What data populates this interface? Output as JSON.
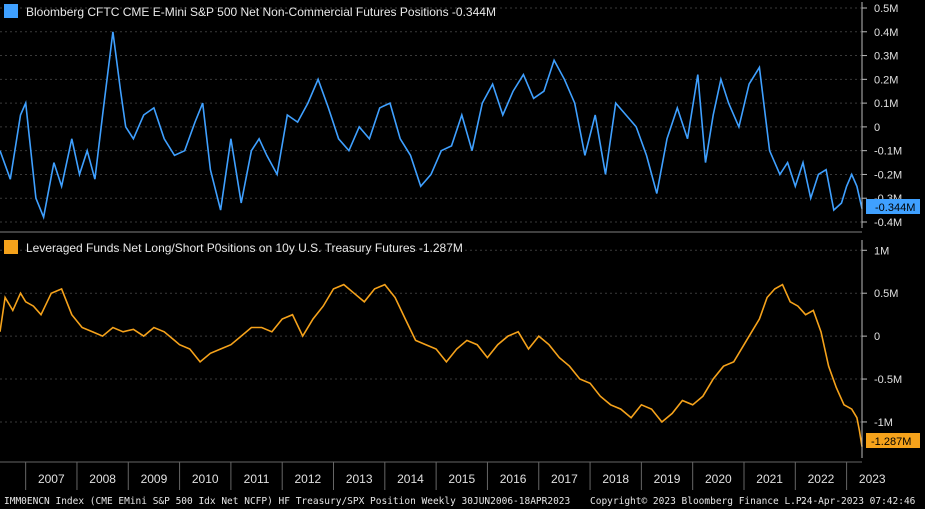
{
  "chart_data": [
    {
      "type": "line",
      "title": "Bloomberg CFTC CME E-Mini S&P 500 Net Non-Commercial Futures Positions",
      "last_value_label": "-0.344M",
      "color": "#3fa0ff",
      "ylim": [
        -0.4,
        0.5
      ],
      "y_ticks": [
        {
          "v": 0.5,
          "label": "0.5M"
        },
        {
          "v": 0.4,
          "label": "0.4M"
        },
        {
          "v": 0.3,
          "label": "0.3M"
        },
        {
          "v": 0.2,
          "label": "0.2M"
        },
        {
          "v": 0.1,
          "label": "0.1M"
        },
        {
          "v": 0,
          "label": "0"
        },
        {
          "v": -0.1,
          "label": "-0.1M"
        },
        {
          "v": -0.2,
          "label": "-0.2M"
        },
        {
          "v": -0.3,
          "label": "-0.3M"
        },
        {
          "v": -0.4,
          "label": "-0.4M"
        }
      ],
      "x": [
        2006.5,
        2006.7,
        2006.9,
        2007.0,
        2007.2,
        2007.35,
        2007.55,
        2007.7,
        2007.9,
        2008.05,
        2008.2,
        2008.35,
        2008.5,
        2008.7,
        2008.85,
        2008.95,
        2009.1,
        2009.3,
        2009.5,
        2009.7,
        2009.9,
        2010.1,
        2010.3,
        2010.45,
        2010.6,
        2010.8,
        2011.0,
        2011.2,
        2011.4,
        2011.55,
        2011.7,
        2011.9,
        2012.1,
        2012.3,
        2012.5,
        2012.7,
        2012.9,
        2013.1,
        2013.3,
        2013.5,
        2013.7,
        2013.9,
        2014.1,
        2014.3,
        2014.5,
        2014.7,
        2014.9,
        2015.1,
        2015.3,
        2015.5,
        2015.7,
        2015.9,
        2016.1,
        2016.3,
        2016.5,
        2016.7,
        2016.9,
        2017.1,
        2017.3,
        2017.5,
        2017.7,
        2017.9,
        2018.1,
        2018.3,
        2018.5,
        2018.7,
        2018.9,
        2019.1,
        2019.3,
        2019.5,
        2019.7,
        2019.9,
        2020.1,
        2020.25,
        2020.4,
        2020.55,
        2020.7,
        2020.9,
        2021.1,
        2021.3,
        2021.5,
        2021.7,
        2021.85,
        2022.0,
        2022.15,
        2022.3,
        2022.45,
        2022.6,
        2022.75,
        2022.9,
        2023.0,
        2023.1,
        2023.2,
        2023.3
      ],
      "values": [
        -0.1,
        -0.22,
        0.05,
        0.1,
        -0.3,
        -0.38,
        -0.15,
        -0.25,
        -0.05,
        -0.2,
        -0.1,
        -0.22,
        0.05,
        0.4,
        0.15,
        0.0,
        -0.05,
        0.05,
        0.08,
        -0.05,
        -0.12,
        -0.1,
        0.02,
        0.1,
        -0.18,
        -0.35,
        -0.05,
        -0.32,
        -0.1,
        -0.05,
        -0.12,
        -0.2,
        0.05,
        0.02,
        0.1,
        0.2,
        0.08,
        -0.05,
        -0.1,
        0.0,
        -0.05,
        0.08,
        0.1,
        -0.05,
        -0.12,
        -0.25,
        -0.2,
        -0.1,
        -0.08,
        0.05,
        -0.1,
        0.1,
        0.18,
        0.05,
        0.15,
        0.22,
        0.12,
        0.15,
        0.28,
        0.2,
        0.1,
        -0.12,
        0.05,
        -0.2,
        0.1,
        0.05,
        0.0,
        -0.12,
        -0.28,
        -0.05,
        0.08,
        -0.05,
        0.22,
        -0.15,
        0.05,
        0.2,
        0.1,
        0.0,
        0.18,
        0.25,
        -0.1,
        -0.2,
        -0.15,
        -0.25,
        -0.15,
        -0.3,
        -0.2,
        -0.18,
        -0.35,
        -0.32,
        -0.25,
        -0.2,
        -0.25,
        -0.344
      ]
    },
    {
      "type": "line",
      "title": "Leveraged Funds Net Long/Short P0sitions on 10y U.S. Treasury Futures",
      "last_value_label": "-1.287M",
      "color": "#f5a21b",
      "ylim": [
        -1.35,
        1.05
      ],
      "y_ticks": [
        {
          "v": 1,
          "label": "1M"
        },
        {
          "v": 0.5,
          "label": "0.5M"
        },
        {
          "v": 0,
          "label": "0"
        },
        {
          "v": -0.5,
          "label": "-0.5M"
        },
        {
          "v": -1,
          "label": "-1M"
        }
      ],
      "x": [
        2006.5,
        2006.6,
        2006.75,
        2006.9,
        2007.0,
        2007.15,
        2007.3,
        2007.5,
        2007.7,
        2007.9,
        2008.1,
        2008.3,
        2008.5,
        2008.7,
        2008.9,
        2009.1,
        2009.3,
        2009.5,
        2009.7,
        2009.9,
        2010.0,
        2010.2,
        2010.4,
        2010.6,
        2010.8,
        2011.0,
        2011.2,
        2011.4,
        2011.6,
        2011.8,
        2012.0,
        2012.2,
        2012.4,
        2012.6,
        2012.8,
        2013.0,
        2013.2,
        2013.4,
        2013.6,
        2013.8,
        2014.0,
        2014.2,
        2014.4,
        2014.6,
        2014.8,
        2015.0,
        2015.2,
        2015.4,
        2015.6,
        2015.8,
        2016.0,
        2016.2,
        2016.4,
        2016.6,
        2016.8,
        2017.0,
        2017.2,
        2017.4,
        2017.6,
        2017.8,
        2018.0,
        2018.2,
        2018.4,
        2018.6,
        2018.8,
        2019.0,
        2019.2,
        2019.4,
        2019.6,
        2019.8,
        2020.0,
        2020.2,
        2020.4,
        2020.6,
        2020.8,
        2021.0,
        2021.15,
        2021.3,
        2021.45,
        2021.6,
        2021.75,
        2021.9,
        2022.05,
        2022.2,
        2022.35,
        2022.5,
        2022.65,
        2022.8,
        2022.95,
        2023.1,
        2023.2,
        2023.25,
        2023.3
      ],
      "values": [
        0.05,
        0.45,
        0.3,
        0.5,
        0.4,
        0.35,
        0.25,
        0.5,
        0.55,
        0.25,
        0.1,
        0.05,
        0.0,
        0.1,
        0.05,
        0.08,
        0.0,
        0.1,
        0.05,
        -0.05,
        -0.1,
        -0.15,
        -0.3,
        -0.2,
        -0.15,
        -0.1,
        0.0,
        0.1,
        0.1,
        0.05,
        0.2,
        0.25,
        0.0,
        0.2,
        0.35,
        0.55,
        0.6,
        0.5,
        0.4,
        0.55,
        0.6,
        0.45,
        0.2,
        -0.05,
        -0.1,
        -0.15,
        -0.3,
        -0.15,
        -0.05,
        -0.1,
        -0.25,
        -0.1,
        0.0,
        0.05,
        -0.15,
        0.0,
        -0.1,
        -0.25,
        -0.35,
        -0.5,
        -0.55,
        -0.7,
        -0.8,
        -0.85,
        -0.95,
        -0.8,
        -0.85,
        -1.0,
        -0.9,
        -0.75,
        -0.8,
        -0.7,
        -0.5,
        -0.35,
        -0.3,
        -0.1,
        0.05,
        0.2,
        0.45,
        0.55,
        0.6,
        0.4,
        0.35,
        0.25,
        0.3,
        0.05,
        -0.35,
        -0.6,
        -0.8,
        -0.85,
        -0.95,
        -1.1,
        -1.287
      ]
    }
  ],
  "x_axis": {
    "ticks": [
      "2007",
      "2008",
      "2009",
      "2010",
      "2011",
      "2012",
      "2013",
      "2014",
      "2015",
      "2016",
      "2017",
      "2018",
      "2019",
      "2020",
      "2021",
      "2022",
      "2023"
    ],
    "xlim": [
      2006.5,
      2023.3
    ]
  },
  "footer": {
    "left": "IMM0ENCN Index (CME EMini S&P 500 Idx Net NCFP) HF Treasury/SPX Position  Weekly 30JUN2006-18APR2023",
    "center": "Copyright© 2023 Bloomberg Finance L.P.",
    "right": "24-Apr-2023 07:42:46"
  }
}
